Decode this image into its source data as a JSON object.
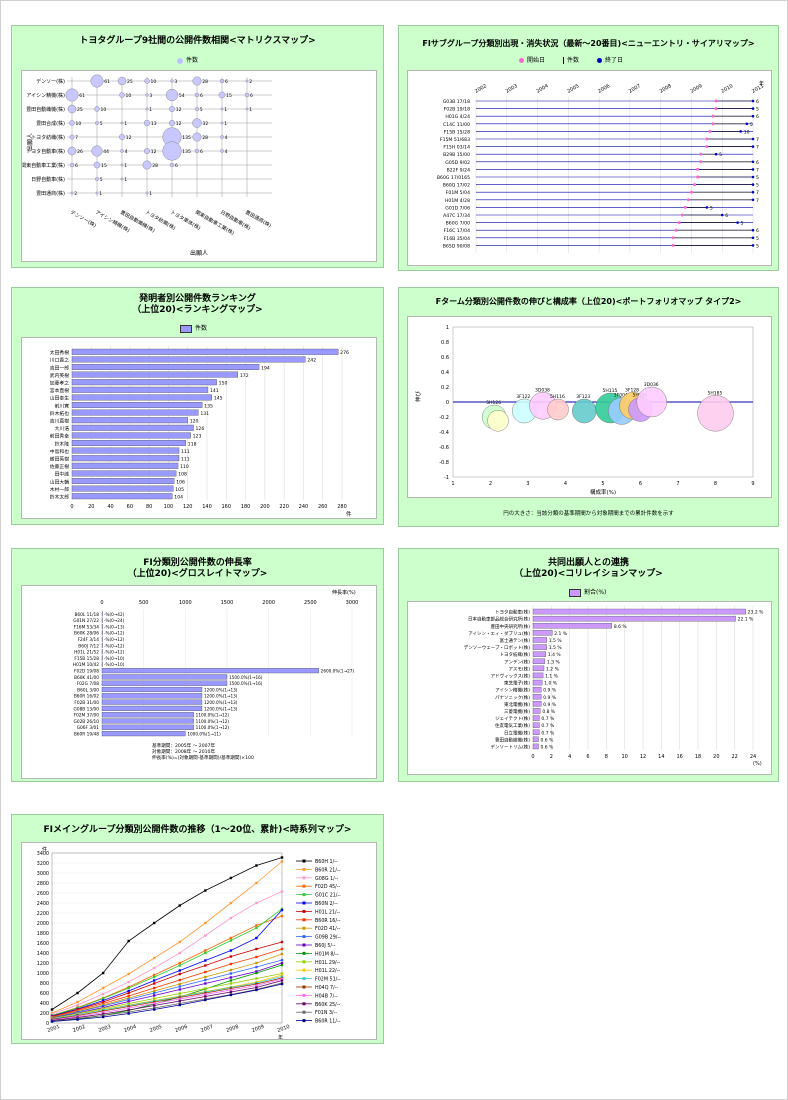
{
  "chart_data": [
    {
      "id": "matrix",
      "type": "bubble-matrix",
      "title": "トヨタグループ9社間の公開件数相関<マトリクスマップ>",
      "legend": [
        "件数"
      ],
      "ylabel": "出願人",
      "xlabel": "出願人",
      "rows": [
        "デンソー(株)",
        "アイシン精機(株)",
        "豊田自動織機(株)",
        "豊田合成(株)",
        "トヨタ紡織(株)",
        "トヨタ自動車(株)",
        "関東自動車工業(株)",
        "日野自動車(株)",
        "豊田通商(株)"
      ],
      "cols": [
        "デンソー(株)",
        "アイシン精機(株)",
        "豊田自動織機(株)",
        "トヨタ紡織(株)",
        "トヨタ車体(株)",
        "関東自動車工業(株)",
        "日野自動車(株)",
        "豊田通商(株)"
      ],
      "cells": [
        [
          null,
          61,
          25,
          10,
          3,
          28,
          6,
          2
        ],
        [
          61,
          null,
          10,
          3,
          54,
          6,
          15,
          6
        ],
        [
          25,
          10,
          null,
          1,
          12,
          5,
          1,
          1
        ],
        [
          10,
          5,
          1,
          13,
          12,
          32,
          1,
          null
        ],
        [
          7,
          null,
          12,
          null,
          135,
          28,
          4,
          null
        ],
        [
          26,
          44,
          4,
          12,
          135,
          6,
          4,
          null
        ],
        [
          6,
          15,
          1,
          28,
          6,
          null,
          null,
          null
        ],
        [
          null,
          5,
          1,
          null,
          null,
          null,
          null,
          null
        ],
        [
          2,
          1,
          null,
          1,
          null,
          null,
          null,
          null
        ]
      ]
    },
    {
      "id": "fi_subgroup",
      "type": "timeline",
      "title": "FIサブグループ分類別出現・消失状況（最新～20番目)<ニューエントリ・サイアリマップ>",
      "legend": [
        "開始日",
        "件数",
        "終了日"
      ],
      "x_ticks": [
        "2002",
        "2003",
        "2004",
        "2005",
        "2006",
        "2007",
        "2008",
        "2009",
        "2010",
        "2011"
      ],
      "x_unit": "年",
      "rows": [
        {
          "label": "G03B 17/18",
          "start": 2009.8,
          "end": 2011.0,
          "count": 6
        },
        {
          "label": "F02B 19/18",
          "start": 2009.8,
          "end": 2011.0,
          "count": 5
        },
        {
          "label": "H01G 4/24",
          "start": 2009.7,
          "end": 2011.0,
          "count": 6
        },
        {
          "label": "C14C 11/00",
          "start": 2009.7,
          "end": 2010.8,
          "count": 5
        },
        {
          "label": "F15B 15/28",
          "start": 2009.6,
          "end": 2010.6,
          "count": 10
        },
        {
          "label": "F15M 51/683",
          "start": 2009.5,
          "end": 2011.0,
          "count": 7
        },
        {
          "label": "F15H 03/14",
          "start": 2009.5,
          "end": 2011.0,
          "count": 7
        },
        {
          "label": "B29B 15/00",
          "start": 2009.3,
          "end": 2009.8,
          "count": 5
        },
        {
          "label": "G05D 9/02",
          "start": 2009.3,
          "end": 2011.0,
          "count": 6
        },
        {
          "label": "B22F 9/24",
          "start": 2009.2,
          "end": 2011.0,
          "count": 7
        },
        {
          "label": "B60G 17/0165",
          "start": 2009.2,
          "end": 2011.0,
          "count": 5
        },
        {
          "label": "B60Q 17/02",
          "start": 2009.1,
          "end": 2011.0,
          "count": 5
        },
        {
          "label": "F01M 5/04",
          "start": 2009.0,
          "end": 2011.0,
          "count": 7
        },
        {
          "label": "H01M 4/28",
          "start": 2008.9,
          "end": 2011.0,
          "count": 7
        },
        {
          "label": "G01D 7/06",
          "start": 2008.8,
          "end": 2009.5,
          "count": 5
        },
        {
          "label": "A47C 17/34",
          "start": 2008.7,
          "end": 2010.0,
          "count": 6
        },
        {
          "label": "B60G 7/00",
          "start": 2008.6,
          "end": 2010.5,
          "count": 5
        },
        {
          "label": "F16C 17/04",
          "start": 2008.5,
          "end": 2011.0,
          "count": 6
        },
        {
          "label": "F16B 35/04",
          "start": 2008.4,
          "end": 2011.0,
          "count": 5
        },
        {
          "label": "B65D 90/08",
          "start": 2008.4,
          "end": 2011.0,
          "count": 5
        }
      ]
    },
    {
      "id": "inventor_ranking",
      "type": "bar",
      "orientation": "horizontal",
      "title": "発明者別公開件数ランキング",
      "subtitle": "（上位20)<ランキングマップ>",
      "legend": [
        "件数"
      ],
      "xlabel": "件",
      "xlim": [
        0,
        280
      ],
      "x_ticks": [
        0,
        20,
        40,
        60,
        80,
        100,
        120,
        140,
        160,
        180,
        200,
        220,
        240,
        260,
        280
      ],
      "categories": [
        "太田秀樹",
        "川口貴之",
        "吉田一郎",
        "武内英樹",
        "加藤孝之",
        "宮本直樹",
        "山田泰生",
        "前川寛",
        "鈴木拓也",
        "吉川直樹",
        "大川浩",
        "前田秀幸",
        "鈴木隆",
        "中島和也",
        "飯田英樹",
        "佐藤正樹",
        "田中誠",
        "山田大輔",
        "木村一郎",
        "鈴木太郎"
      ],
      "values": [
        276,
        242,
        194,
        172,
        150,
        141,
        145,
        135,
        131,
        120,
        126,
        123,
        118,
        111,
        111,
        110,
        108,
        106,
        105,
        104
      ]
    },
    {
      "id": "fterm_portfolio",
      "type": "bubble",
      "title": "Fターム分類別公開件数の伸びと構成率（上位20)<ポートフォリオマップ タイプ2>",
      "xlabel": "構成率(%)",
      "ylabel": "伸び",
      "xlim": [
        1,
        9
      ],
      "ylim": [
        -1,
        1
      ],
      "x_ticks": [
        1,
        2,
        3,
        4,
        5,
        6,
        7,
        8,
        9
      ],
      "y_ticks": [
        1,
        0.8,
        0.6,
        0.4,
        0.2,
        0,
        -0.2,
        -0.4,
        -0.6,
        -0.8,
        -1
      ],
      "note": "円の大きさ：当該分類の基準期間から対象期間までの累計件数を示す",
      "points": [
        {
          "label": "5H126",
          "x": 2.1,
          "y": -0.2,
          "size": 0.08,
          "color": "#ccffcc"
        },
        {
          "label": "",
          "x": 2.2,
          "y": -0.25,
          "size": 0.07,
          "color": "#ffffcc"
        },
        {
          "label": "3F122",
          "x": 2.9,
          "y": -0.12,
          "size": 0.08,
          "color": "#ccffff"
        },
        {
          "label": "3D038",
          "x": 3.4,
          "y": -0.05,
          "size": 0.09,
          "color": "#ffccff"
        },
        {
          "label": "5H116",
          "x": 3.8,
          "y": -0.1,
          "size": 0.07,
          "color": "#ffcccc"
        },
        {
          "label": "3F123",
          "x": 4.5,
          "y": -0.12,
          "size": 0.08,
          "color": "#66cccc"
        },
        {
          "label": "5H115",
          "x": 5.2,
          "y": -0.08,
          "size": 0.1,
          "color": "#33cc99"
        },
        {
          "label": "3F004",
          "x": 5.5,
          "y": -0.12,
          "size": 0.09,
          "color": "#99ccff"
        },
        {
          "label": "3F128",
          "x": 5.8,
          "y": -0.05,
          "size": 0.09,
          "color": "#ffcc66"
        },
        {
          "label": "5H106",
          "x": 6.0,
          "y": -0.1,
          "size": 0.08,
          "color": "#cc99ff"
        },
        {
          "label": "3D036",
          "x": 6.3,
          "y": 0.0,
          "size": 0.1,
          "color": "#ffccff"
        },
        {
          "label": "5H185",
          "x": 8.0,
          "y": -0.15,
          "size": 0.12,
          "color": "#ffccee"
        }
      ]
    },
    {
      "id": "fi_growth",
      "type": "bar",
      "orientation": "horizontal",
      "title": "FI分類別公開件数の伸長率",
      "subtitle": "（上位20)<グロスレイトマップ>",
      "xlabel": "伸長率(%)",
      "xlim": [
        0,
        3000
      ],
      "x_ticks": [
        0,
        500,
        1000,
        1500,
        2000,
        2500,
        3000
      ],
      "note_lines": [
        "基準期間：2005年 ～ 2007年",
        "対象期間：2008年 ～ 2010年",
        "伸長率(%)=(対象期間-基準期間)/基準期間)×100"
      ],
      "categories": [
        "B60L 11/18",
        "G01N 27/22",
        "F16M 53/34",
        "B60K 28/06",
        "F24F 3/14",
        "B60J 7/12",
        "H01L 21/52",
        "F15B 15/28",
        "H01M 10/42",
        "F02D 19/08",
        "B60K 41/00",
        "F02G 7/08",
        "B60L 3/00",
        "B60R 16/02",
        "F02B 31/00",
        "G08B 13/00",
        "F02M 37/00",
        "G02B 26/10",
        "G06F 3/01",
        "B60R 19/48"
      ],
      "values": [
        0,
        0,
        0,
        0,
        0,
        0,
        0,
        0,
        0,
        2600,
        1500,
        1500,
        1200,
        1200,
        1200,
        1200,
        1100,
        1100,
        1100,
        1000
      ],
      "value_labels": [
        "-%(0→42)",
        "-%(0→24)",
        "-%(0→13)",
        "-%(0→12)",
        "-%(0→12)",
        "-%(0→12)",
        "-%(0→12)",
        "-%(0→10)",
        "-%(0→10)",
        "2600.0%(1→27)",
        "1500.0%(1→16)",
        "1500.0%(1→16)",
        "1200.0%(1→13)",
        "1200.0%(1→13)",
        "1200.0%(1→13)",
        "1200.0%(1→13)",
        "1100.0%(1→12)",
        "1100.0%(1→12)",
        "1100.0%(1→12)",
        "1000.0%(1→11)"
      ]
    },
    {
      "id": "co_applicant",
      "type": "bar",
      "orientation": "horizontal",
      "title": "共同出願人との連携",
      "subtitle": "（上位20)<コリレイションマップ>",
      "legend": [
        "割合(%)"
      ],
      "xlabel": "(%)",
      "xlim": [
        0,
        24
      ],
      "x_ticks": [
        0,
        2,
        4,
        6,
        8,
        10,
        12,
        14,
        16,
        18,
        20,
        22,
        24
      ],
      "categories": [
        "トヨタ自動車(株)",
        "日本自動車部品総合研究所(株)",
        "豊田中央研究所(株)",
        "アイシン・エィ・ダブリュ(株)",
        "富士通テン(株)",
        "デンソーウェーブ・ロボット(株)",
        "トヨタ紡織(株)",
        "アンデン(株)",
        "アスモ(株)",
        "アドヴィックス(株)",
        "東芝電子(株)",
        "アイシン精機(株)",
        "パナソニック(株)",
        "東北電機(株)",
        "三菱電機(株)",
        "ジェイテクト(株)",
        "住友電気工業(株)",
        "日立電機(株)",
        "豊田自動織機(株)",
        "デンソートリム(株)"
      ],
      "values": [
        23.2,
        22.1,
        8.6,
        2.1,
        1.5,
        1.5,
        1.4,
        1.3,
        1.2,
        1.1,
        1.0,
        0.9,
        0.9,
        0.9,
        0.8,
        0.7,
        0.7,
        0.7,
        0.6,
        0.6
      ],
      "value_labels": [
        "23.2 %",
        "22.1 %",
        "8.6 %",
        "2.1 %",
        "1.5 %",
        "1.5 %",
        "1.4 %",
        "1.3 %",
        "1.2 %",
        "1.1 %",
        "1.0 %",
        "0.9 %",
        "0.9 %",
        "0.9 %",
        "0.8 %",
        "0.7 %",
        "0.7 %",
        "0.7 %",
        "0.6 %",
        "0.6 %"
      ]
    },
    {
      "id": "fi_timeseries",
      "type": "line",
      "title": "FIメイングループ分類別公開件数の推移（1～20位、累計)<時系列マップ>",
      "ylabel": "件",
      "xlabel": "年",
      "ylim": [
        0,
        3400
      ],
      "y_ticks": [
        0,
        200,
        400,
        600,
        800,
        1000,
        1200,
        1400,
        1600,
        1800,
        2000,
        2200,
        2400,
        2600,
        2800,
        3000,
        3200,
        3400
      ],
      "x": [
        "2001",
        "2002",
        "2003",
        "2004",
        "2005",
        "2006",
        "2007",
        "2008",
        "2009",
        "2010"
      ],
      "series": [
        {
          "name": "B60H 1/--",
          "color": "#000000",
          "values": [
            270,
            600,
            1000,
            1640,
            2000,
            2350,
            2650,
            2900,
            3150,
            3310
          ]
        },
        {
          "name": "B60R 21/--",
          "color": "#ff9933",
          "values": [
            200,
            420,
            700,
            980,
            1300,
            1620,
            2000,
            2400,
            2800,
            3230
          ]
        },
        {
          "name": "G08G 1/--",
          "color": "#ff99cc",
          "values": [
            180,
            360,
            580,
            820,
            1100,
            1400,
            1750,
            2100,
            2400,
            2630
          ]
        },
        {
          "name": "F02D 45/--",
          "color": "#ff6600",
          "values": [
            150,
            310,
            500,
            720,
            960,
            1200,
            1450,
            1700,
            1950,
            2140
          ]
        },
        {
          "name": "G01C 21/--",
          "color": "#33cc33",
          "values": [
            150,
            300,
            490,
            700,
            920,
            1150,
            1400,
            1650,
            1900,
            2280
          ]
        },
        {
          "name": "B60N 2/--",
          "color": "#0000ff",
          "values": [
            140,
            280,
            450,
            640,
            850,
            1050,
            1250,
            1450,
            1700,
            2260
          ]
        },
        {
          "name": "H01L 21/--",
          "color": "#cc0000",
          "values": [
            130,
            270,
            420,
            600,
            790,
            980,
            1150,
            1330,
            1480,
            1620
          ]
        },
        {
          "name": "B60R 16/--",
          "color": "#ff3300",
          "values": [
            120,
            250,
            390,
            540,
            700,
            860,
            1020,
            1180,
            1320,
            1480
          ]
        },
        {
          "name": "F02D 41/--",
          "color": "#cc9900",
          "values": [
            110,
            230,
            360,
            500,
            640,
            780,
            920,
            1060,
            1200,
            1380
          ]
        },
        {
          "name": "G09B 29/--",
          "color": "#3366ff",
          "values": [
            100,
            220,
            340,
            470,
            600,
            730,
            860,
            990,
            1120,
            1260
          ]
        },
        {
          "name": "B60J 5/--",
          "color": "#6600cc",
          "values": [
            95,
            200,
            310,
            430,
            550,
            670,
            790,
            910,
            1030,
            1200
          ]
        },
        {
          "name": "H01M 8/--",
          "color": "#009900",
          "values": [
            30,
            80,
            150,
            250,
            380,
            520,
            680,
            850,
            1000,
            1160
          ]
        },
        {
          "name": "H01L 29/--",
          "color": "#99cc00",
          "values": [
            90,
            190,
            290,
            390,
            490,
            590,
            690,
            790,
            890,
            990
          ]
        },
        {
          "name": "H01L 22/--",
          "color": "#ffcc00",
          "values": [
            85,
            180,
            270,
            360,
            450,
            540,
            630,
            720,
            820,
            960
          ]
        },
        {
          "name": "F02M 51/--",
          "color": "#33cccc",
          "values": [
            80,
            170,
            260,
            350,
            440,
            530,
            620,
            710,
            800,
            930
          ]
        },
        {
          "name": "H04Q 7/--",
          "color": "#993300",
          "values": [
            70,
            150,
            240,
            330,
            420,
            510,
            600,
            690,
            780,
            900
          ]
        },
        {
          "name": "H04B 7/--",
          "color": "#ff66ff",
          "values": [
            60,
            130,
            210,
            300,
            390,
            480,
            570,
            660,
            750,
            880
          ]
        },
        {
          "name": "B60K 25/--",
          "color": "#660066",
          "values": [
            50,
            110,
            180,
            260,
            350,
            440,
            530,
            620,
            710,
            850
          ]
        },
        {
          "name": "F01N 3/--",
          "color": "#666666",
          "values": [
            40,
            90,
            150,
            220,
            300,
            390,
            480,
            570,
            670,
            800
          ]
        },
        {
          "name": "B60R 11/--",
          "color": "#000099",
          "values": [
            30,
            70,
            120,
            190,
            270,
            360,
            460,
            560,
            660,
            780
          ]
        }
      ]
    }
  ]
}
